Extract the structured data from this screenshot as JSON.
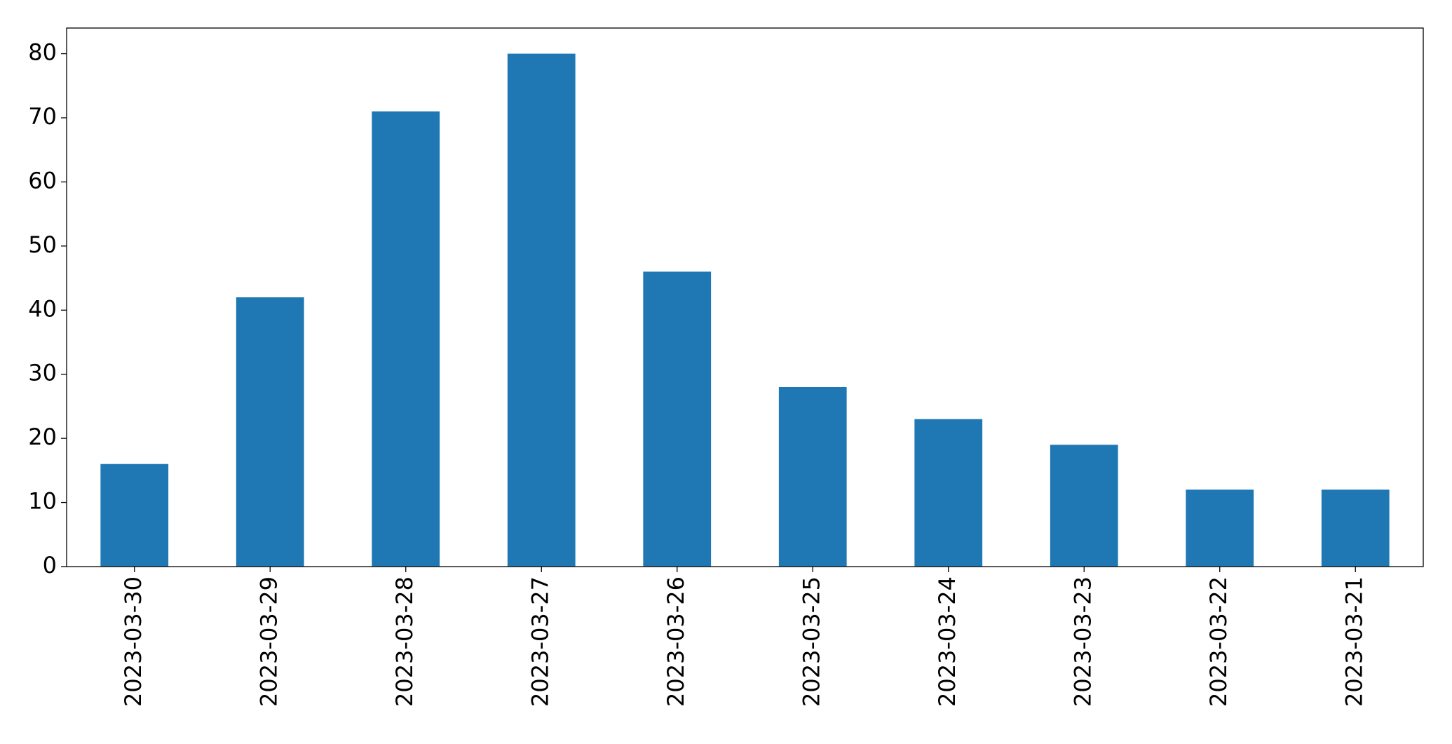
{
  "chart_data": {
    "type": "bar",
    "categories": [
      "2023-03-30",
      "2023-03-29",
      "2023-03-28",
      "2023-03-27",
      "2023-03-26",
      "2023-03-25",
      "2023-03-24",
      "2023-03-23",
      "2023-03-22",
      "2023-03-21"
    ],
    "values": [
      16,
      42,
      71,
      80,
      46,
      28,
      23,
      19,
      12,
      12
    ],
    "color": "#1f77b4",
    "ylim": [
      0,
      84
    ],
    "yticks": [
      0,
      10,
      20,
      30,
      40,
      50,
      60,
      70,
      80
    ],
    "grid": false
  }
}
